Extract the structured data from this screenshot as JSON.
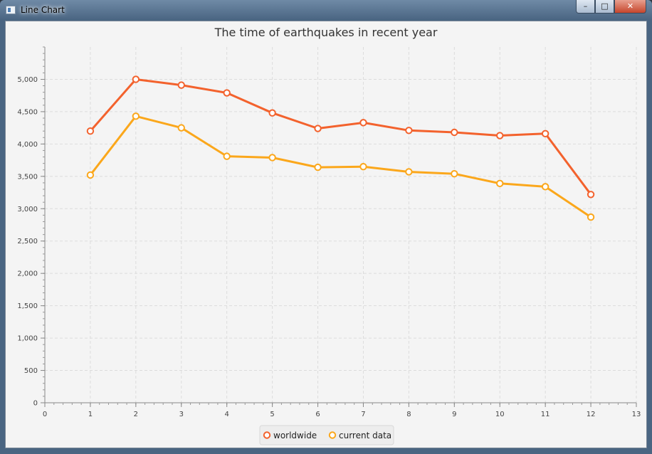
{
  "window": {
    "title": "Line Chart",
    "controls": {
      "minimize": "–",
      "maximize": "□",
      "close": "✕"
    }
  },
  "chart_data": {
    "type": "line",
    "title": "The time of earthquakes in recent year",
    "xlabel": "",
    "ylabel": "",
    "xlim": [
      0,
      13
    ],
    "ylim": [
      0,
      5500
    ],
    "x_ticks": [
      0,
      1,
      2,
      3,
      4,
      5,
      6,
      7,
      8,
      9,
      10,
      11,
      12,
      13
    ],
    "y_ticks": [
      0,
      500,
      1000,
      1500,
      2000,
      2500,
      3000,
      3500,
      4000,
      4500,
      5000
    ],
    "y_tick_labels": [
      "0",
      "500",
      "1,000",
      "1,500",
      "2,000",
      "2,500",
      "3,000",
      "3,500",
      "4,000",
      "4,500",
      "5,000"
    ],
    "grid": true,
    "legend_position": "bottom-center",
    "x": [
      1,
      2,
      3,
      4,
      5,
      6,
      7,
      8,
      9,
      10,
      11,
      12
    ],
    "series": [
      {
        "name": "worldwide",
        "color": "#f3622d",
        "values": [
          4200,
          5000,
          4910,
          4790,
          4480,
          4240,
          4330,
          4210,
          4180,
          4130,
          4160,
          3220
        ]
      },
      {
        "name": "current data",
        "color": "#fba71b",
        "values": [
          3520,
          4430,
          4250,
          3810,
          3790,
          3640,
          3650,
          3570,
          3540,
          3390,
          3340,
          2870
        ]
      }
    ]
  }
}
